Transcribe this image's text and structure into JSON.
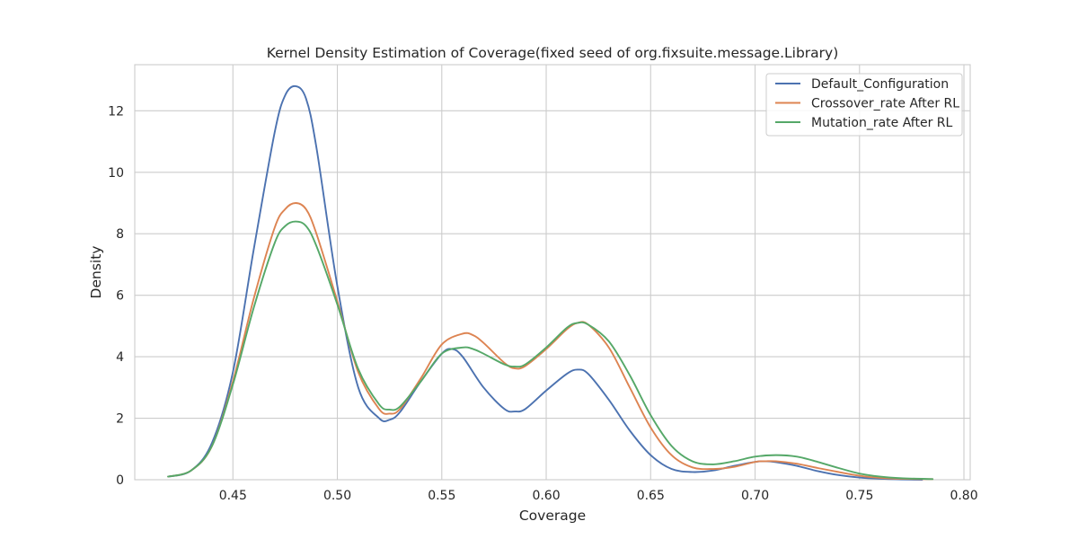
{
  "chart_data": {
    "type": "line",
    "title": "Kernel Density Estimation of Coverage(fixed seed of org.fixsuite.message.Library)",
    "xlabel": "Coverage",
    "ylabel": "Density",
    "xlim": [
      0.403,
      0.803
    ],
    "ylim": [
      0,
      13.5
    ],
    "xticks": [
      0.45,
      0.5,
      0.55,
      0.6,
      0.65,
      0.7,
      0.75,
      0.8
    ],
    "xtick_labels": [
      "0.45",
      "0.50",
      "0.55",
      "0.60",
      "0.65",
      "0.70",
      "0.75",
      "0.80"
    ],
    "yticks": [
      0,
      2,
      4,
      6,
      8,
      10,
      12
    ],
    "ytick_labels": [
      "0",
      "2",
      "4",
      "6",
      "8",
      "10",
      "12"
    ],
    "grid": true,
    "legend_position": "top-right",
    "series": [
      {
        "name": "Default_Configuration",
        "color": "#4c72b0",
        "points": [
          [
            0.419,
            0.1
          ],
          [
            0.43,
            0.3
          ],
          [
            0.44,
            1.2
          ],
          [
            0.45,
            3.5
          ],
          [
            0.46,
            7.5
          ],
          [
            0.47,
            11.3
          ],
          [
            0.475,
            12.5
          ],
          [
            0.48,
            12.8
          ],
          [
            0.485,
            12.4
          ],
          [
            0.49,
            10.8
          ],
          [
            0.5,
            6.3
          ],
          [
            0.51,
            3.0
          ],
          [
            0.52,
            2.0
          ],
          [
            0.525,
            1.95
          ],
          [
            0.53,
            2.2
          ],
          [
            0.54,
            3.2
          ],
          [
            0.55,
            4.1
          ],
          [
            0.555,
            4.25
          ],
          [
            0.56,
            4.0
          ],
          [
            0.57,
            3.0
          ],
          [
            0.58,
            2.3
          ],
          [
            0.585,
            2.22
          ],
          [
            0.59,
            2.3
          ],
          [
            0.6,
            2.9
          ],
          [
            0.61,
            3.45
          ],
          [
            0.615,
            3.58
          ],
          [
            0.62,
            3.45
          ],
          [
            0.63,
            2.6
          ],
          [
            0.64,
            1.6
          ],
          [
            0.65,
            0.8
          ],
          [
            0.66,
            0.35
          ],
          [
            0.67,
            0.25
          ],
          [
            0.68,
            0.3
          ],
          [
            0.69,
            0.45
          ],
          [
            0.7,
            0.58
          ],
          [
            0.705,
            0.6
          ],
          [
            0.71,
            0.57
          ],
          [
            0.72,
            0.45
          ],
          [
            0.73,
            0.28
          ],
          [
            0.74,
            0.15
          ],
          [
            0.75,
            0.07
          ],
          [
            0.76,
            0.03
          ],
          [
            0.77,
            0.01
          ],
          [
            0.78,
            0.0
          ]
        ]
      },
      {
        "name": "Crossover_rate After RL",
        "color": "#dd8452",
        "points": [
          [
            0.419,
            0.1
          ],
          [
            0.43,
            0.3
          ],
          [
            0.44,
            1.1
          ],
          [
            0.45,
            3.2
          ],
          [
            0.46,
            5.9
          ],
          [
            0.47,
            8.2
          ],
          [
            0.475,
            8.8
          ],
          [
            0.48,
            9.0
          ],
          [
            0.485,
            8.8
          ],
          [
            0.49,
            8.0
          ],
          [
            0.5,
            5.8
          ],
          [
            0.51,
            3.5
          ],
          [
            0.52,
            2.3
          ],
          [
            0.525,
            2.15
          ],
          [
            0.53,
            2.3
          ],
          [
            0.54,
            3.3
          ],
          [
            0.55,
            4.4
          ],
          [
            0.56,
            4.75
          ],
          [
            0.565,
            4.7
          ],
          [
            0.57,
            4.45
          ],
          [
            0.58,
            3.8
          ],
          [
            0.585,
            3.62
          ],
          [
            0.59,
            3.7
          ],
          [
            0.6,
            4.25
          ],
          [
            0.61,
            4.9
          ],
          [
            0.615,
            5.1
          ],
          [
            0.62,
            5.05
          ],
          [
            0.63,
            4.3
          ],
          [
            0.64,
            3.0
          ],
          [
            0.65,
            1.7
          ],
          [
            0.66,
            0.8
          ],
          [
            0.67,
            0.4
          ],
          [
            0.68,
            0.35
          ],
          [
            0.69,
            0.42
          ],
          [
            0.7,
            0.58
          ],
          [
            0.705,
            0.6
          ],
          [
            0.71,
            0.6
          ],
          [
            0.72,
            0.52
          ],
          [
            0.73,
            0.38
          ],
          [
            0.74,
            0.25
          ],
          [
            0.75,
            0.13
          ],
          [
            0.76,
            0.06
          ],
          [
            0.77,
            0.03
          ],
          [
            0.785,
            0.02
          ]
        ]
      },
      {
        "name": "Mutation_rate After RL",
        "color": "#55a868",
        "points": [
          [
            0.419,
            0.1
          ],
          [
            0.43,
            0.3
          ],
          [
            0.44,
            1.1
          ],
          [
            0.45,
            3.1
          ],
          [
            0.46,
            5.6
          ],
          [
            0.47,
            7.7
          ],
          [
            0.475,
            8.25
          ],
          [
            0.48,
            8.4
          ],
          [
            0.485,
            8.25
          ],
          [
            0.49,
            7.6
          ],
          [
            0.5,
            5.7
          ],
          [
            0.51,
            3.6
          ],
          [
            0.52,
            2.45
          ],
          [
            0.525,
            2.28
          ],
          [
            0.53,
            2.38
          ],
          [
            0.54,
            3.2
          ],
          [
            0.55,
            4.1
          ],
          [
            0.56,
            4.3
          ],
          [
            0.565,
            4.25
          ],
          [
            0.57,
            4.1
          ],
          [
            0.58,
            3.75
          ],
          [
            0.585,
            3.68
          ],
          [
            0.59,
            3.75
          ],
          [
            0.6,
            4.3
          ],
          [
            0.61,
            4.95
          ],
          [
            0.615,
            5.1
          ],
          [
            0.62,
            5.05
          ],
          [
            0.63,
            4.5
          ],
          [
            0.64,
            3.4
          ],
          [
            0.65,
            2.1
          ],
          [
            0.66,
            1.1
          ],
          [
            0.67,
            0.6
          ],
          [
            0.68,
            0.5
          ],
          [
            0.69,
            0.6
          ],
          [
            0.7,
            0.75
          ],
          [
            0.71,
            0.8
          ],
          [
            0.72,
            0.75
          ],
          [
            0.73,
            0.58
          ],
          [
            0.74,
            0.38
          ],
          [
            0.75,
            0.2
          ],
          [
            0.76,
            0.1
          ],
          [
            0.77,
            0.05
          ],
          [
            0.785,
            0.02
          ]
        ]
      }
    ]
  }
}
